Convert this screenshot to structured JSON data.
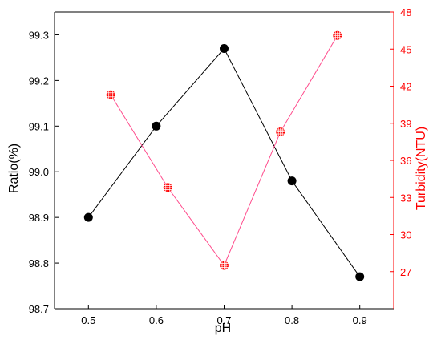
{
  "chart_data": {
    "type": "line",
    "x_axis": {
      "label": "pH",
      "ticks": [
        "0.5",
        "0.6",
        "0.7",
        "0.8",
        "0.9"
      ],
      "range": [
        0.45,
        0.95
      ]
    },
    "y_axis_left": {
      "label": "Ratio(%)",
      "ticks": [
        "98.7",
        "98.8",
        "98.9",
        "99.0",
        "99.1",
        "99.2",
        "99.3"
      ],
      "range": [
        98.7,
        99.35
      ],
      "color": "#000000"
    },
    "y_axis_right": {
      "label": "Turbidity(NTU)",
      "ticks": [
        "27",
        "30",
        "33",
        "36",
        "39",
        "42",
        "45",
        "48"
      ],
      "range": [
        24,
        48
      ],
      "color": "#ff0000"
    },
    "series": [
      {
        "axis": "left",
        "color": "#000000",
        "marker": "filled-circle",
        "x": [
          0.5,
          0.6,
          0.7,
          0.8,
          0.9
        ],
        "y": [
          98.9,
          99.1,
          99.27,
          98.98,
          98.77
        ]
      },
      {
        "axis": "right",
        "color": "#ff0000",
        "line_color": "#ff4d8d",
        "marker": "crossed-circle",
        "x": [
          0.533,
          0.617,
          0.7,
          0.783,
          0.867
        ],
        "y": [
          41.3,
          33.8,
          27.5,
          38.3,
          46.1
        ]
      }
    ],
    "grid": false
  }
}
